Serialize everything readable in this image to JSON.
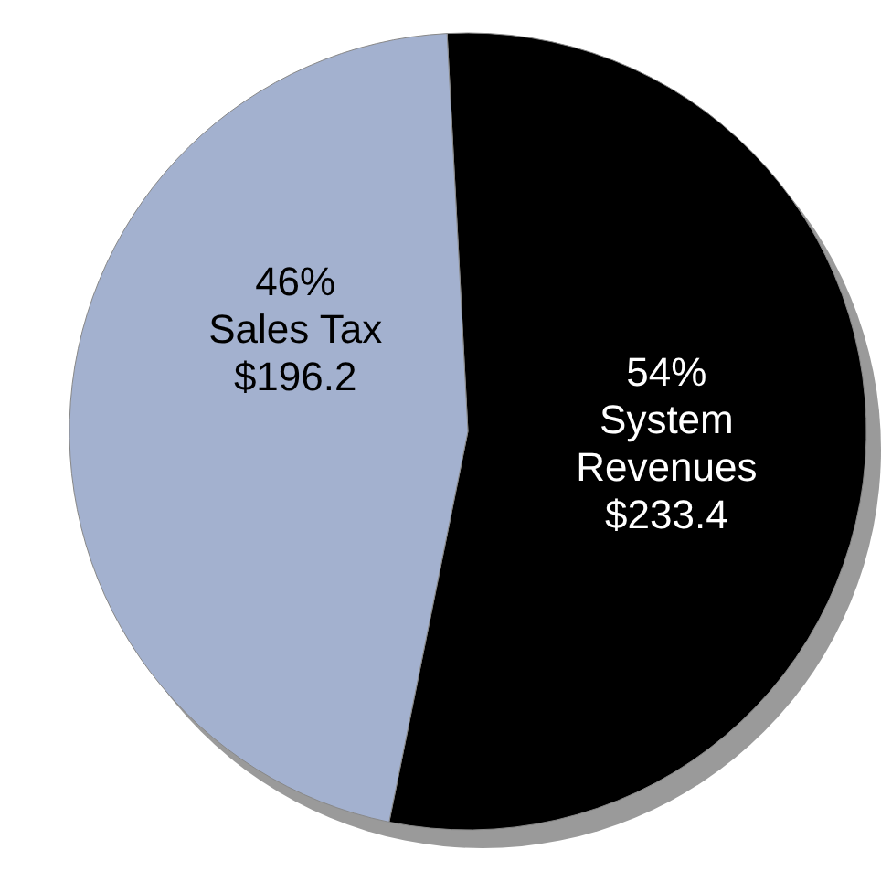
{
  "chart_data": {
    "type": "pie",
    "categories": [
      "System Revenues",
      "Sales Tax"
    ],
    "values": [
      54,
      46
    ],
    "colors": [
      "#000000",
      "#a3b1cf"
    ],
    "value_labels": [
      "54%\n$233.4",
      "46%\n$196.2"
    ]
  }
}
